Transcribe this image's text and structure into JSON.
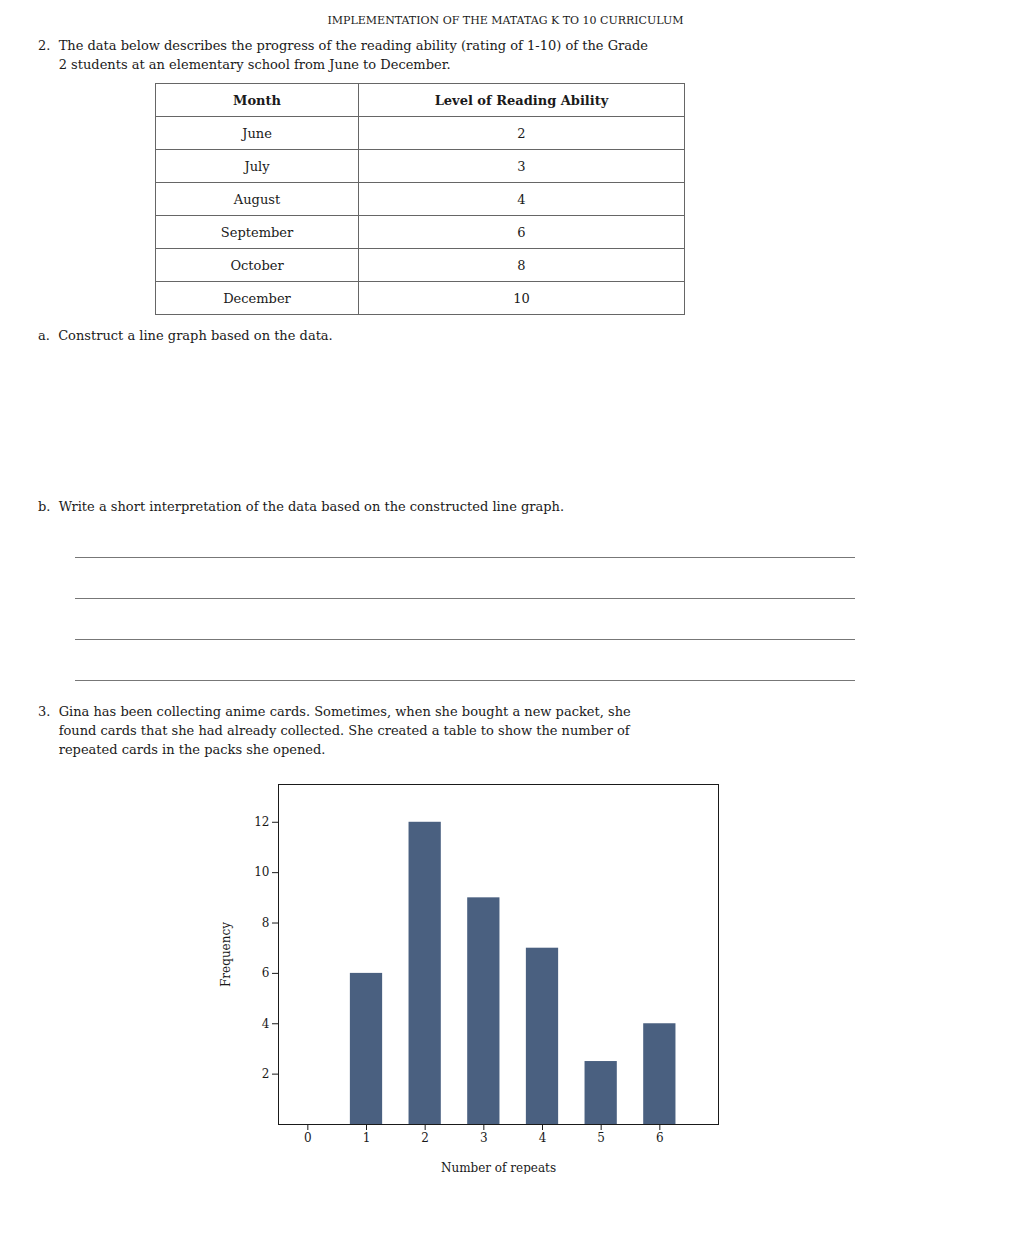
{
  "chart_data": [
    {
      "type": "table",
      "title": "IMPLEMENTATION OF THE MATATAG K TO 10 CURRICULUM",
      "annotations": [
        "2.  The data below describes the progress of the reading ability (rating of 1-10) of the Grade",
        "     2 students at an elementary school from June to December.",
        "a.  Construct a line graph based on the data.",
        "b.  Write a short interpretation of the data based on the constructed line graph."
      ],
      "columns": [
        "Month",
        "Level of Reading Ability"
      ],
      "categories": [
        "June",
        "July",
        "August",
        "September",
        "October",
        "December"
      ],
      "values": [
        2,
        3,
        4,
        6,
        8,
        10
      ]
    },
    {
      "type": "bar",
      "annotations": [
        "3.  Gina has been collecting anime cards. Sometimes, when she bought a new packet, she",
        "     found cards that she had already collected. She created a table to show the number of",
        "     repeated cards in the packs she opened."
      ],
      "x": [
        1,
        2,
        3,
        4,
        5,
        6
      ],
      "values": [
        6,
        12,
        9,
        7,
        2.5,
        4
      ],
      "xlabel": "Number of repeats",
      "ylabel": "Frequency",
      "xlim": [
        -0.5,
        7.0
      ],
      "ylim": [
        0,
        13.5
      ],
      "xticks": [
        0,
        1,
        2,
        3,
        4,
        5,
        6
      ],
      "yticks": [
        2,
        4,
        6,
        8,
        10,
        12
      ],
      "color": "#4a6080",
      "grid": false
    }
  ]
}
